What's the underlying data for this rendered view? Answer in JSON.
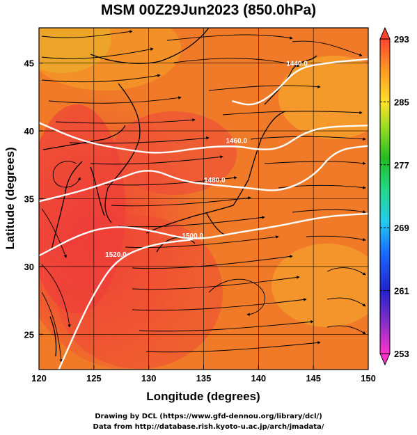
{
  "title": "MSM 00Z29Jun2023 (850.0hPa)",
  "chart_data": {
    "type": "map",
    "x_axis": {
      "label": "Longitude (degrees)",
      "range": [
        120,
        150
      ],
      "ticks": [
        "120",
        "125",
        "130",
        "135",
        "140",
        "145",
        "150"
      ]
    },
    "y_axis": {
      "label": "Latitude  (degrees)",
      "range": [
        22.4,
        47.6
      ],
      "ticks": [
        "25",
        "30",
        "35",
        "40",
        "45"
      ]
    },
    "grid": true,
    "colorbar": {
      "min": 253,
      "max": 293,
      "ticks": [
        "293",
        "285",
        "277",
        "269",
        "261",
        "253"
      ]
    },
    "contours": [
      {
        "label": "1440.0",
        "points": [
          [
            137.6,
            42.2
          ],
          [
            139.5,
            41.8
          ],
          [
            141.5,
            42.8
          ],
          [
            143.5,
            44.6
          ],
          [
            146,
            45.0
          ],
          [
            150,
            45.3
          ]
        ]
      },
      {
        "label": "1460.0",
        "points": [
          [
            120,
            40.6
          ],
          [
            124,
            39.2
          ],
          [
            128,
            38.6
          ],
          [
            131,
            38.3
          ],
          [
            135,
            38.8
          ],
          [
            138,
            38.9
          ],
          [
            140,
            38.6
          ],
          [
            142,
            38.7
          ],
          [
            144,
            39.8
          ],
          [
            146,
            40.3
          ],
          [
            150,
            40.4
          ]
        ]
      },
      {
        "label": "1480.0",
        "points": [
          [
            120,
            34.8
          ],
          [
            124,
            35.6
          ],
          [
            127,
            36.4
          ],
          [
            130,
            37.3
          ],
          [
            133,
            36.3
          ],
          [
            136,
            36.0
          ],
          [
            139,
            35.8
          ],
          [
            142,
            35.5
          ],
          [
            145,
            36.6
          ],
          [
            147,
            38.6
          ],
          [
            150,
            38.9
          ]
        ]
      },
      {
        "label": "1500.0",
        "points": [
          [
            120,
            30.8
          ],
          [
            124,
            32.5
          ],
          [
            127,
            33.0
          ],
          [
            130,
            32.7
          ],
          [
            134,
            31.9
          ],
          [
            138,
            32.5
          ],
          [
            142,
            33.0
          ],
          [
            146,
            33.7
          ],
          [
            150,
            33.9
          ]
        ]
      },
      {
        "label": "1520.0",
        "points": [
          [
            121.8,
            22.4
          ],
          [
            123.5,
            25.5
          ],
          [
            125,
            28.0
          ],
          [
            127,
            30.5
          ],
          [
            130,
            31.6
          ],
          [
            134,
            32.0
          ]
        ]
      }
    ]
  }
}
